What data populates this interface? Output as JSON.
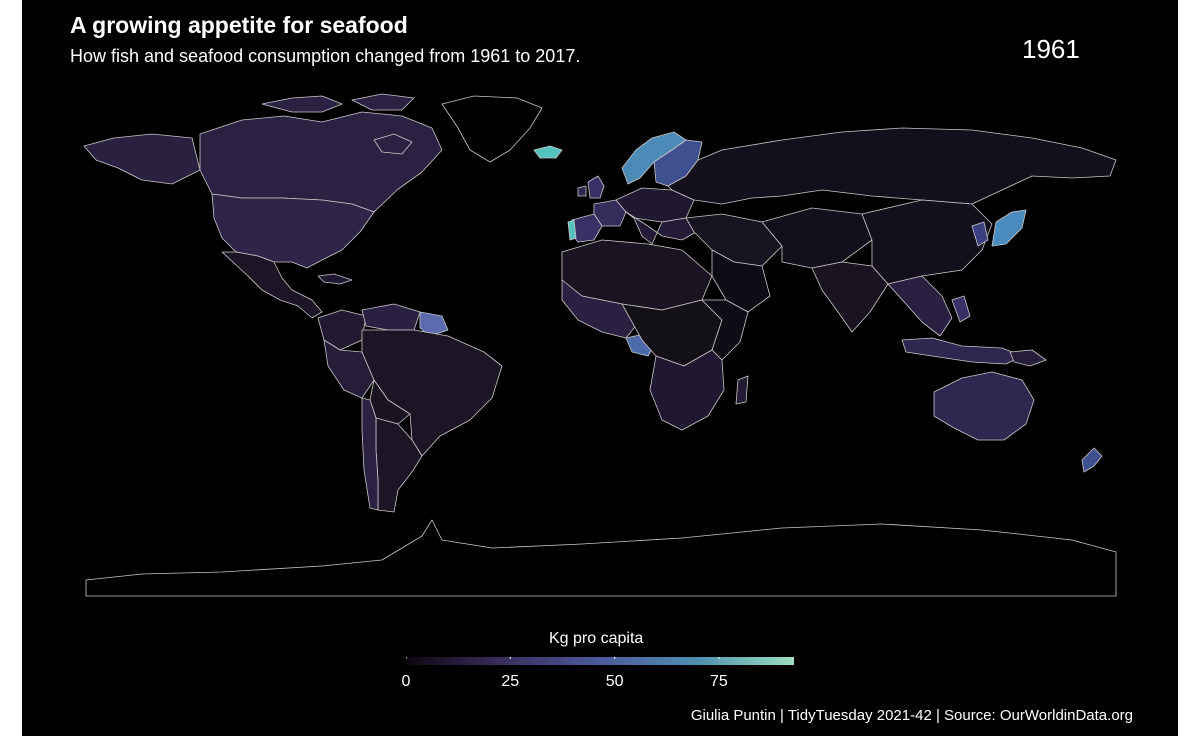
{
  "title": "A growing appetite for seafood",
  "subtitle": "How fish and seafood consumption changed from 1961 to 2017.",
  "year": "1961",
  "legend": {
    "title": "Kg pro capita",
    "ticks": [
      "0",
      "25",
      "50",
      "75"
    ],
    "min": 0,
    "max": 93,
    "colors": [
      "#0d0610",
      "#3a2f5e",
      "#4c5a9c",
      "#4f8fb0",
      "#9ee0c0"
    ]
  },
  "caption": "Giulia Puntin | TidyTuesday 2021-42 | Source: OurWorldinData.org",
  "colors": {
    "background": "#000000",
    "text": "#ffffff",
    "borders": "#c8c8c8"
  }
}
